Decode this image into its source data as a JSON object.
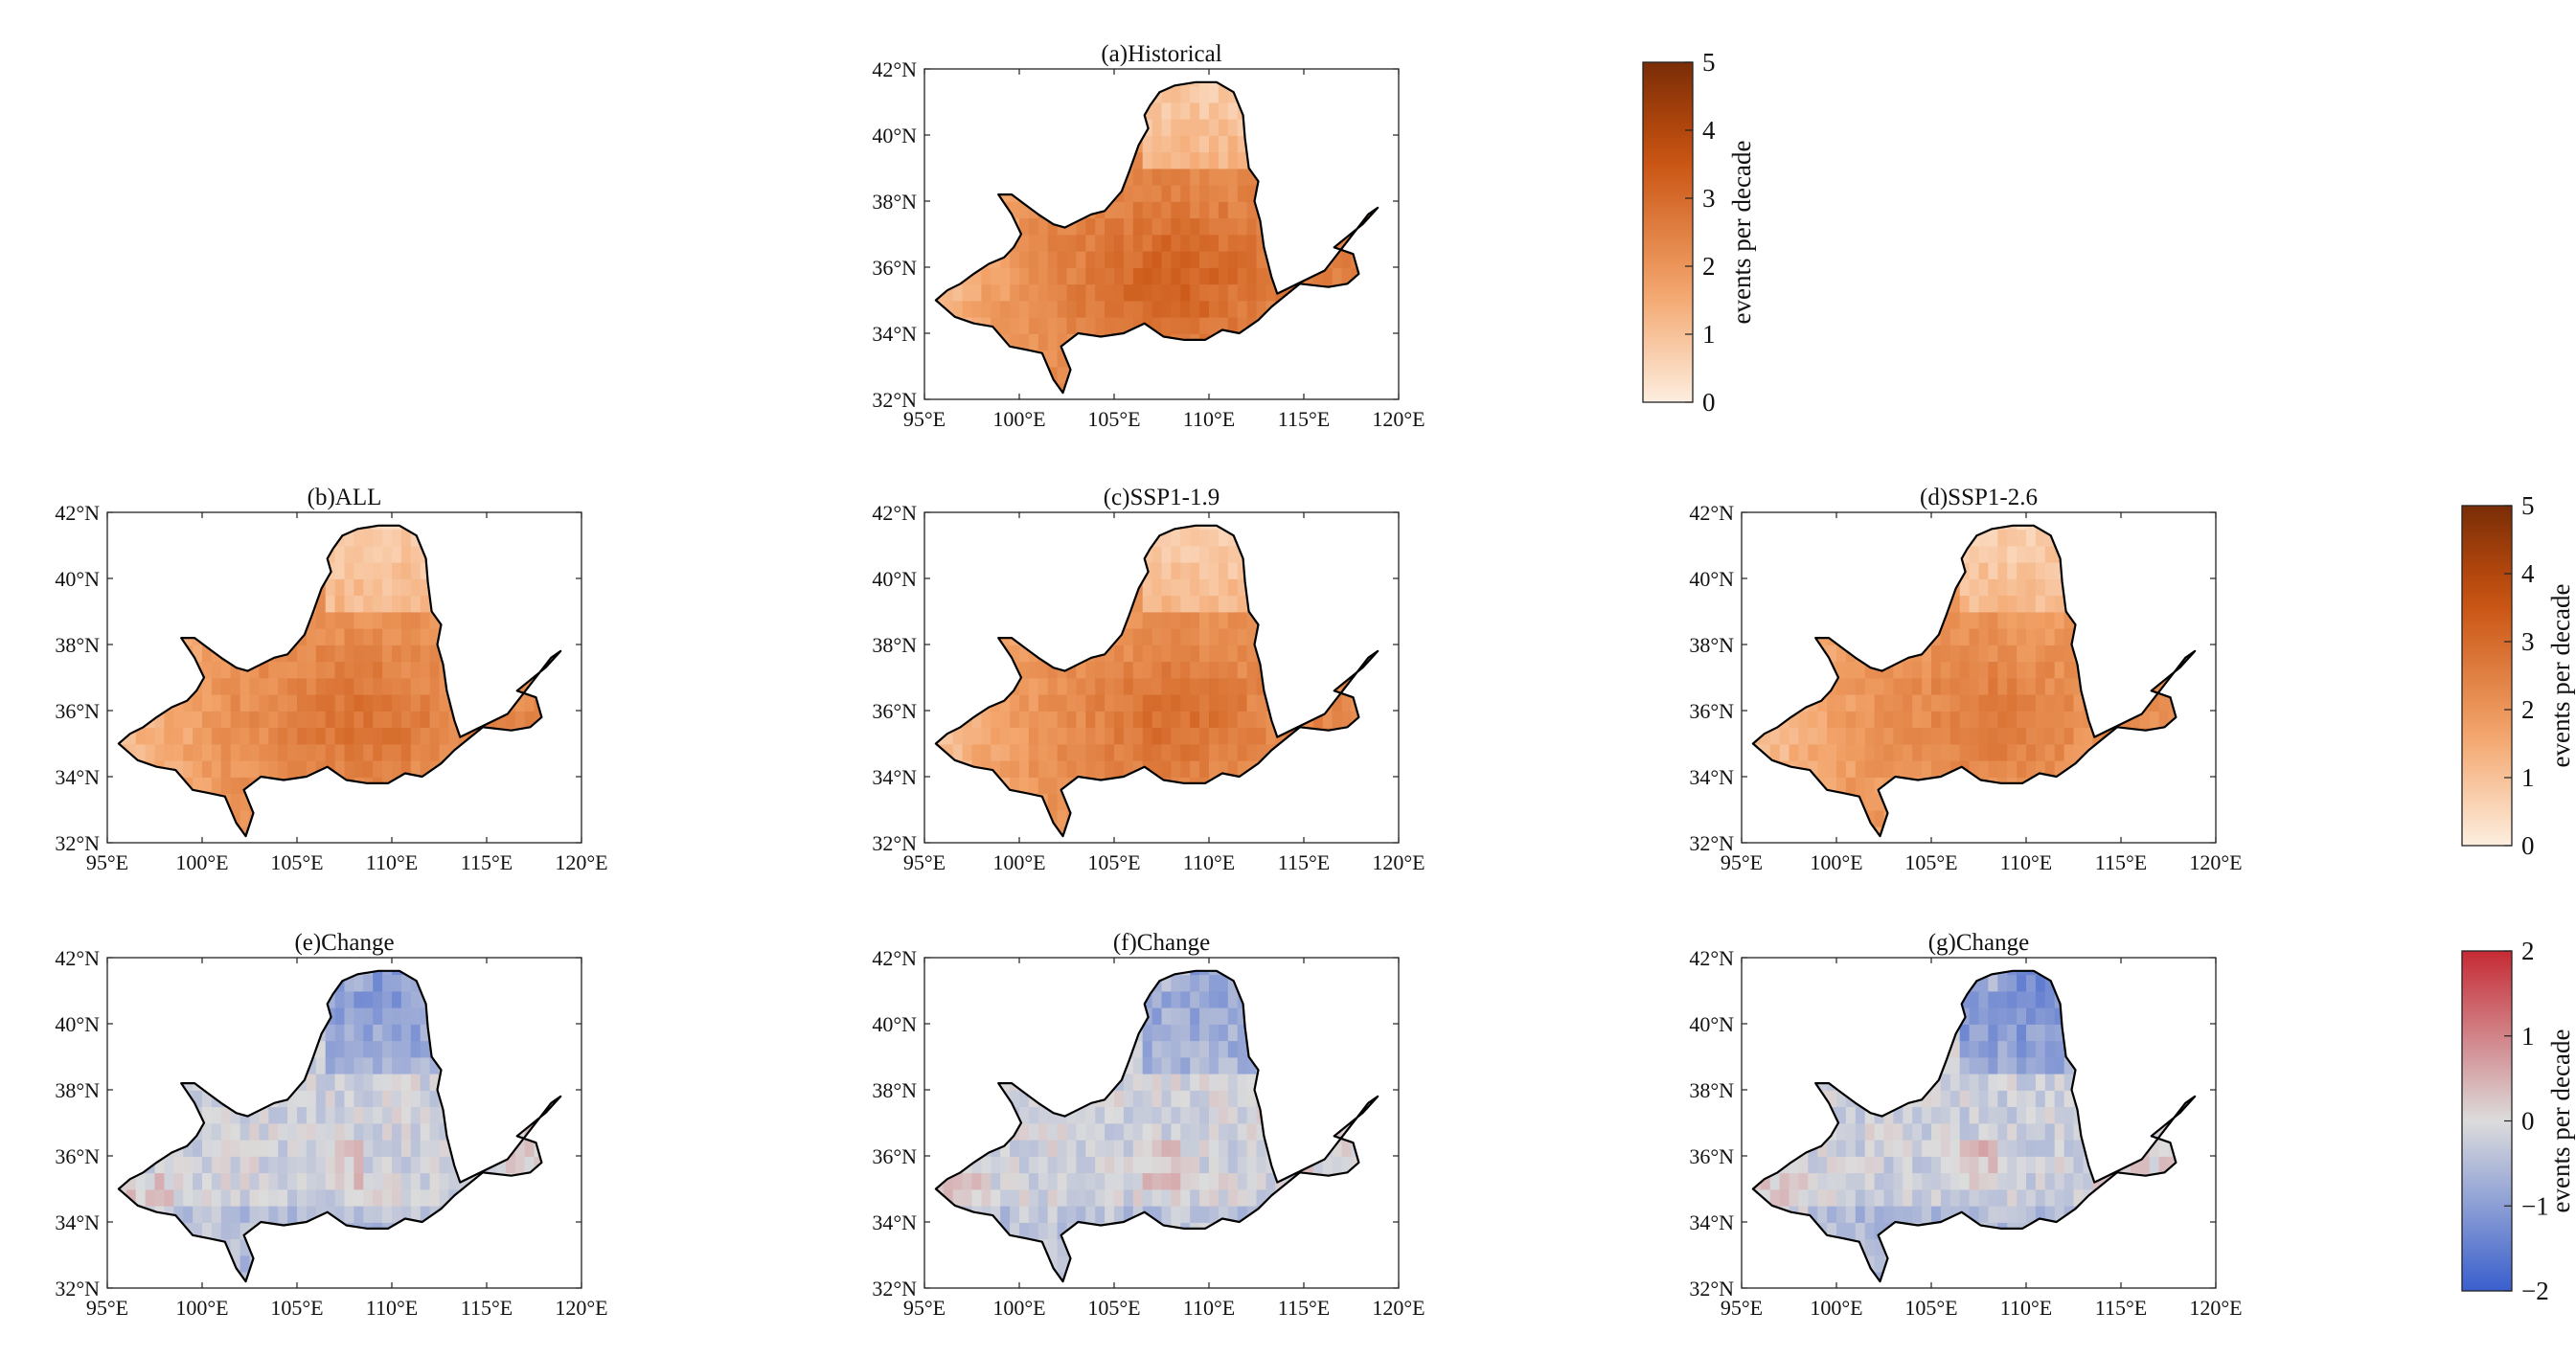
{
  "figure": {
    "axes": {
      "lat_ticks": [
        "32°N",
        "34°N",
        "36°N",
        "38°N",
        "40°N",
        "42°N"
      ],
      "lon_ticks": [
        "95°E",
        "100°E",
        "105°E",
        "110°E",
        "115°E",
        "120°E"
      ],
      "lat_range": [
        32,
        42
      ],
      "lon_range": [
        95,
        120
      ]
    },
    "panels": [
      {
        "id": "a",
        "title": "(a)Historical",
        "kind": "freq",
        "intensity": 0.8
      },
      {
        "id": "b",
        "title": "(b)ALL",
        "kind": "freq",
        "intensity": 0.68
      },
      {
        "id": "c",
        "title": "(c)SSP1-1.9",
        "kind": "freq",
        "intensity": 0.7
      },
      {
        "id": "d",
        "title": "(d)SSP1-2.6",
        "kind": "freq",
        "intensity": 0.62
      },
      {
        "id": "e",
        "title": "(e)Change",
        "kind": "change",
        "intensity": 0.45
      },
      {
        "id": "f",
        "title": "(f)Change",
        "kind": "change",
        "intensity": 0.4
      },
      {
        "id": "g",
        "title": "(g)Change",
        "kind": "change",
        "intensity": 0.55
      }
    ],
    "colorbars": [
      {
        "id": "cb1",
        "kind": "freq",
        "label": "events per decade",
        "ticks": [
          "0",
          "1",
          "2",
          "3",
          "4",
          "5"
        ]
      },
      {
        "id": "cb2",
        "kind": "freq",
        "label": "events per decade",
        "ticks": [
          "0",
          "1",
          "2",
          "3",
          "4",
          "5"
        ]
      },
      {
        "id": "cb3",
        "kind": "change",
        "label": "events per decade",
        "ticks": [
          "−2",
          "−1",
          "0",
          "1",
          "2"
        ]
      }
    ]
  },
  "colors": {
    "freq_low": "#fdeee0",
    "freq_mid": "#f3a46a",
    "freq_high": "#c85210",
    "freq_max": "#7a2d07",
    "change_neg": "#3a5fcd",
    "change_zero": "#dcdcdc",
    "change_pos": "#c62a34"
  }
}
